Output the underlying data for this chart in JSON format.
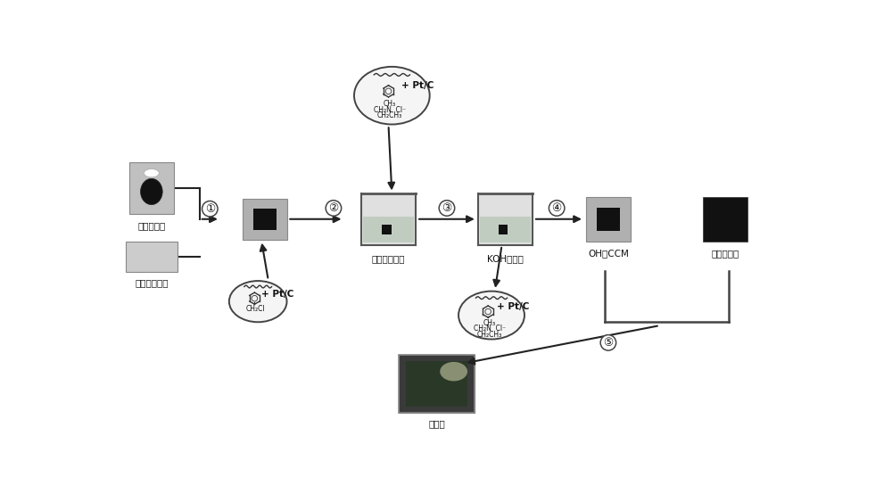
{
  "bg_color": "#ffffff",
  "labels": {
    "catalyst_ink": "催化剂墨水",
    "anion_exchange": "阴离子交换膜",
    "trimethyl": "三甲胺水溶液",
    "koh": "KOH水溶液",
    "oh_ccm": "OH型CCM",
    "carbon_diffusion": "碳纸扩散层",
    "membrane_electrode": "膜电极"
  },
  "step_numbers": [
    "①",
    "②",
    "③",
    "④",
    "⑤"
  ],
  "ptc_label": "+ Pt/C",
  "chem1_text": "CH₂Cl",
  "chem2_lines": [
    "CH₃",
    "CH₂N  Cl⁻",
    "CH₂CH₃"
  ],
  "gray_light": "#c8c8c8",
  "gray_mid": "#b0b0b0",
  "gray_dark": "#888888",
  "black": "#111111",
  "liquid_color": "#c0ccc0",
  "beaker_bg": "#e0e0e0",
  "circle_bg": "#f5f5f5",
  "text_color": "#111111",
  "arrow_color": "#222222",
  "label_fontsize": 7.5,
  "step_fontsize": 9
}
